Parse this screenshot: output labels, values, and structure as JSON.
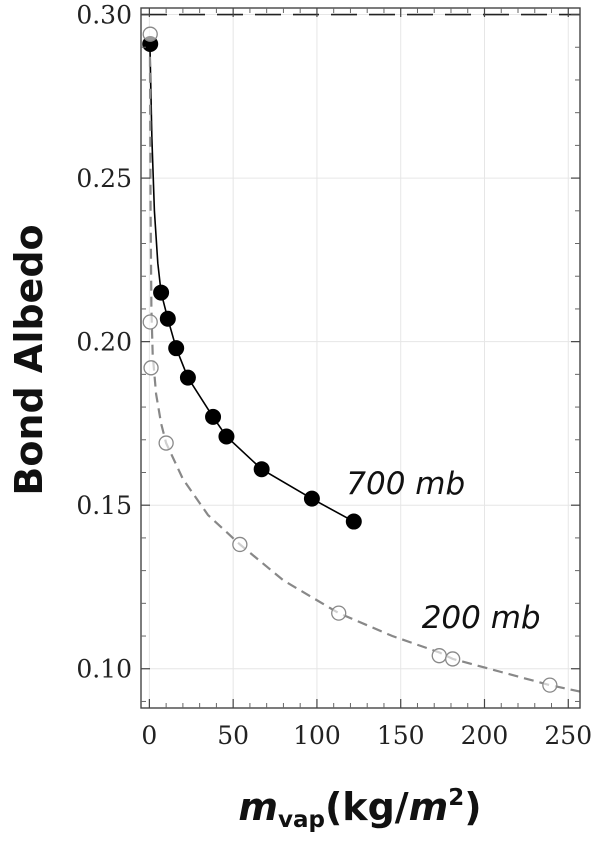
{
  "chart_data": {
    "type": "scatter",
    "title": "",
    "xlabel": {
      "base": "m",
      "sub": "vap",
      "units_prefix": "(kg/",
      "units_var": "m",
      "units_sup": "2",
      "units_suffix": ")"
    },
    "ylabel": "Bond Albedo",
    "xlim": [
      -5,
      257
    ],
    "ylim": [
      0.088,
      0.302
    ],
    "x_ticks": [
      0,
      50,
      100,
      150,
      200,
      250
    ],
    "x_tick_labels": [
      "0",
      "50",
      "100",
      "150",
      "200",
      "250"
    ],
    "y_ticks": [
      0.1,
      0.15,
      0.2,
      0.25,
      0.3
    ],
    "y_tick_labels": [
      "0.10",
      "0.15",
      "0.20",
      "0.25",
      "0.30"
    ],
    "grid": true,
    "reference_line": {
      "y": 0.3,
      "style": "dashed",
      "color": "#222222"
    },
    "series": [
      {
        "name": "700 mb",
        "marker": "filled-circle",
        "line_style": "solid",
        "color": "#000000",
        "x": [
          0.5,
          7,
          11,
          16,
          23,
          38,
          46,
          67,
          97,
          122
        ],
        "y": [
          0.291,
          0.215,
          0.207,
          0.198,
          0.189,
          0.177,
          0.171,
          0.161,
          0.152,
          0.145
        ],
        "fit_x": [
          0.3,
          1.5,
          3,
          5,
          7,
          11,
          16,
          23,
          38,
          46,
          67,
          97,
          122
        ],
        "fit_y": [
          0.291,
          0.262,
          0.24,
          0.224,
          0.215,
          0.207,
          0.198,
          0.189,
          0.177,
          0.171,
          0.161,
          0.152,
          0.145
        ]
      },
      {
        "name": "200 mb",
        "marker": "open-circle",
        "line_style": "dashed",
        "color": "#888888",
        "x": [
          0.5,
          0.5,
          1,
          10,
          54,
          113,
          173,
          181,
          239
        ],
        "y": [
          0.294,
          0.206,
          0.192,
          0.169,
          0.138,
          0.117,
          0.104,
          0.103,
          0.095
        ],
        "fit_x": [
          0.3,
          0.7,
          1.2,
          2,
          4,
          7,
          10,
          20,
          35,
          54,
          80,
          113,
          145,
          173,
          181,
          210,
          239,
          257
        ],
        "fit_y": [
          0.292,
          0.24,
          0.21,
          0.196,
          0.184,
          0.175,
          0.169,
          0.158,
          0.147,
          0.138,
          0.127,
          0.117,
          0.11,
          0.105,
          0.103,
          0.099,
          0.095,
          0.093
        ]
      }
    ],
    "annotations": [
      {
        "text": "700 mb",
        "x": 153,
        "y": 0.1565
      },
      {
        "text": "200 mb",
        "x": 198,
        "y": 0.1155
      }
    ]
  }
}
